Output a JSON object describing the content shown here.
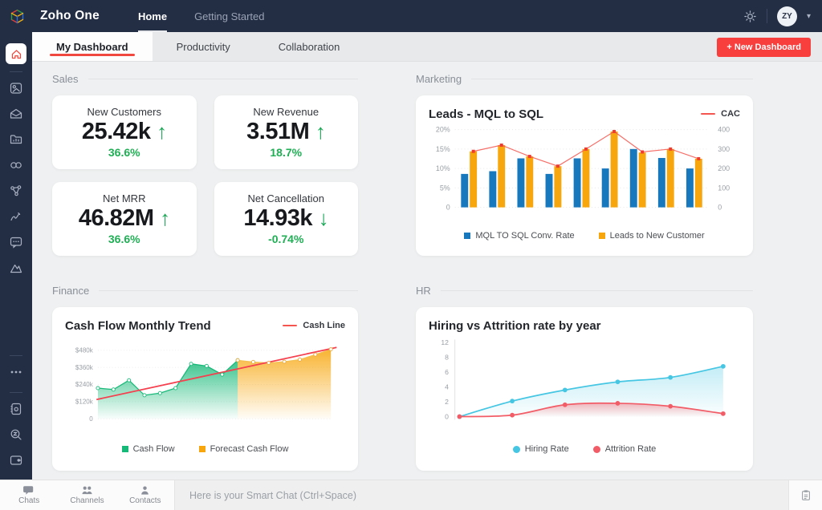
{
  "topbar": {
    "brand": "Zoho One",
    "nav": [
      {
        "label": "Home",
        "active": true
      },
      {
        "label": "Getting Started",
        "active": false
      }
    ],
    "avatar_initials": "ZY"
  },
  "tabs": {
    "items": [
      {
        "label": "My Dashboard",
        "active": true
      },
      {
        "label": "Productivity",
        "active": false
      },
      {
        "label": "Collaboration",
        "active": false
      }
    ],
    "new_button": "+ New Dashboard"
  },
  "sales": {
    "title": "Sales",
    "cards": [
      {
        "title": "New Customers",
        "value": "25.42k",
        "arrow": "↑",
        "direction": "up",
        "change": "36.6%"
      },
      {
        "title": "New Revenue",
        "value": "3.51M",
        "arrow": "↑",
        "direction": "up",
        "change": "18.7%"
      },
      {
        "title": "Net MRR",
        "value": "46.82M",
        "arrow": "↑",
        "direction": "up",
        "change": "36.6%"
      },
      {
        "title": "Net Cancellation",
        "value": "14.93k",
        "arrow": "↓",
        "direction": "down",
        "change": "-0.74%"
      }
    ]
  },
  "marketing": {
    "title": "Marketing"
  },
  "finance": {
    "title": "Finance"
  },
  "hr": {
    "title": "HR"
  },
  "chart_data": [
    {
      "id": "leads",
      "type": "bar",
      "title": "Leads - MQL to SQL",
      "header_legend": "CAC",
      "categories": [
        "",
        "",
        "",
        "",
        "",
        "",
        "",
        "",
        ""
      ],
      "left_axis": {
        "ticks": [
          "20%",
          "15%",
          "10%",
          "5%",
          "0"
        ],
        "max": 20
      },
      "right_axis": {
        "ticks": [
          "400",
          "300",
          "200",
          "100",
          "0"
        ],
        "max": 400
      },
      "grid": true,
      "legend_position": "bottom",
      "series": [
        {
          "name": "MQL TO SQL Conv. Rate",
          "type": "bar",
          "axis": "left",
          "color": "#1878be",
          "values": [
            8.6,
            9.3,
            12.6,
            8.6,
            12.6,
            10,
            15,
            12.7,
            10
          ]
        },
        {
          "name": "Leads to New Customer",
          "type": "bar",
          "axis": "right",
          "color": "#f7a60d",
          "values": [
            288,
            320,
            262,
            212,
            300,
            390,
            282,
            300,
            250
          ]
        },
        {
          "name": "CAC",
          "type": "line",
          "axis": "right",
          "color": "#f4564f",
          "values": [
            288,
            320,
            262,
            212,
            300,
            390,
            285,
            300,
            250
          ]
        }
      ]
    },
    {
      "id": "cashflow",
      "type": "area",
      "title": "Cash Flow Monthly Trend",
      "header_legend": "Cash Line",
      "yticks": [
        "$480k",
        "$360k",
        "$240k",
        "$120k",
        "0"
      ],
      "ytick_values": [
        480,
        360,
        240,
        120,
        0
      ],
      "ymax": 520,
      "grid": true,
      "legend_position": "bottom",
      "series": [
        {
          "name": "Cash Flow",
          "type": "area",
          "color": "#17b978",
          "values": [
            215,
            205,
            270,
            165,
            180,
            215,
            385,
            370,
            310,
            410
          ]
        },
        {
          "name": "Forecast Cash Flow",
          "type": "area",
          "color": "#f7a60d",
          "start_index": 9,
          "values": [
            410,
            398,
            392,
            400,
            415,
            450,
            487
          ]
        },
        {
          "name": "Cash Line",
          "type": "trendline",
          "color": "#f5404f",
          "values": [
            135,
            500
          ]
        }
      ]
    },
    {
      "id": "hiring",
      "type": "line",
      "title": "Hiring vs Attrition rate by year",
      "yticks": [
        "12",
        "8",
        "6",
        "4",
        "2",
        "0"
      ],
      "grid": false,
      "legend_position": "bottom",
      "series": [
        {
          "name": "Hiring Rate",
          "type": "line-area",
          "color": "#45c6e3",
          "values": [
            0,
            2.1,
            3.6,
            4.7,
            5.3,
            6.8
          ]
        },
        {
          "name": "Attrition Rate",
          "type": "line-area",
          "color": "#f25c66",
          "values": [
            0,
            0.2,
            1.6,
            1.8,
            1.4,
            0.4
          ]
        }
      ]
    }
  ],
  "chat_bar": {
    "tabs": [
      {
        "label": "Chats"
      },
      {
        "label": "Channels"
      },
      {
        "label": "Contacts"
      }
    ],
    "placeholder": "Here is your Smart Chat (Ctrl+Space)"
  },
  "colors": {
    "topbar_bg": "#232e44",
    "accent_red": "#f93e3e",
    "tab_underline_red": "#f0483e",
    "positive_green": "#1faf54",
    "bar_blue": "#1878be",
    "bar_orange": "#f7a60d",
    "cac_line_red": "#f4564f",
    "cash_green": "#17b978",
    "trend_red": "#f5404f",
    "hiring_cyan": "#45c6e3",
    "attrition_red": "#f25c66"
  }
}
